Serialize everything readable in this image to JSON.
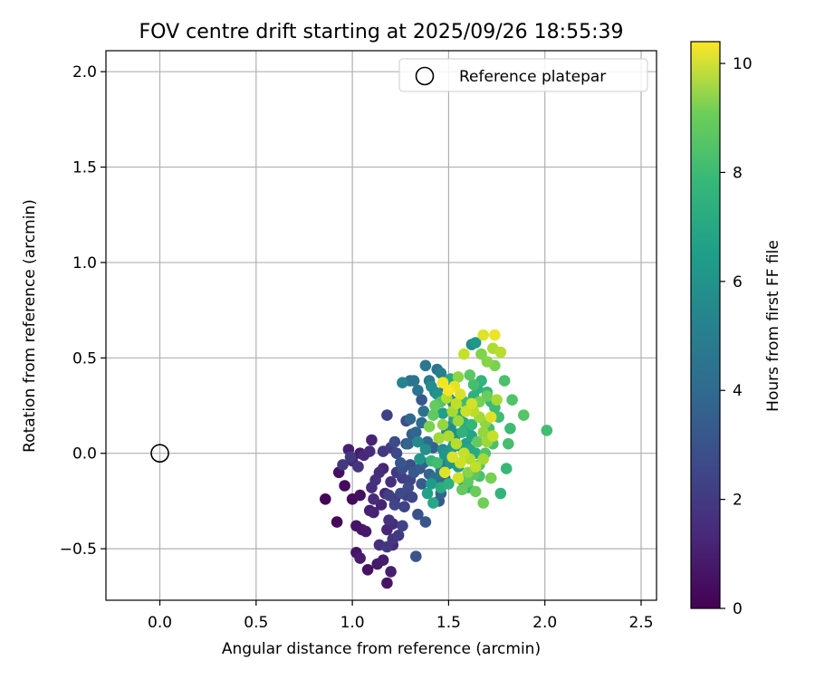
{
  "chart_data": {
    "type": "scatter",
    "title": "FOV centre drift starting at 2025/09/26 18:55:39",
    "xlabel": "Angular distance from reference (arcmin)",
    "ylabel": "Rotation from reference (arcmin)",
    "xlim": [
      -0.28,
      2.58
    ],
    "ylim": [
      -0.77,
      2.11
    ],
    "xticks": [
      0.0,
      0.5,
      1.0,
      1.5,
      2.0,
      2.5
    ],
    "xtick_labels": [
      "0.0",
      "0.5",
      "1.0",
      "1.5",
      "2.0",
      "2.5"
    ],
    "yticks": [
      -0.5,
      0.0,
      0.5,
      1.0,
      1.5,
      2.0
    ],
    "ytick_labels": [
      "−0.5",
      "0.0",
      "0.5",
      "1.0",
      "1.5",
      "2.0"
    ],
    "grid": true,
    "legend": {
      "placement": "upper right",
      "entries": [
        "Reference platepar"
      ]
    },
    "reference_point": {
      "x": 0.0,
      "y": 0.0,
      "label": "Reference platepar"
    },
    "colorbar": {
      "label": "Hours from first FF file",
      "colormap": "viridis",
      "range": [
        0,
        10.4
      ],
      "ticks": [
        0,
        2,
        4,
        6,
        8,
        10
      ],
      "tick_labels": [
        "0",
        "2",
        "4",
        "6",
        "8",
        "10"
      ]
    },
    "points": [
      [
        0.86,
        -0.24,
        0.1
      ],
      [
        0.92,
        -0.36,
        0.2
      ],
      [
        0.96,
        -0.17,
        0.3
      ],
      [
        0.93,
        -0.1,
        0.4
      ],
      [
        1.0,
        -0.24,
        0.3
      ],
      [
        1.02,
        -0.38,
        0.5
      ],
      [
        1.04,
        -0.22,
        0.4
      ],
      [
        1.05,
        -0.4,
        0.6
      ],
      [
        1.07,
        -0.41,
        0.7
      ],
      [
        1.08,
        -0.61,
        0.5
      ],
      [
        1.02,
        -0.52,
        0.6
      ],
      [
        1.04,
        -0.55,
        0.8
      ],
      [
        1.09,
        -0.3,
        0.9
      ],
      [
        1.11,
        -0.31,
        1.0
      ],
      [
        1.13,
        -0.58,
        0.7
      ],
      [
        1.16,
        -0.56,
        0.8
      ],
      [
        1.18,
        -0.68,
        0.6
      ],
      [
        1.2,
        -0.62,
        0.9
      ],
      [
        1.18,
        -0.4,
        1.1
      ],
      [
        1.21,
        -0.48,
        1.2
      ],
      [
        1.15,
        -0.27,
        1.0
      ],
      [
        1.17,
        -0.21,
        1.2
      ],
      [
        1.14,
        -0.1,
        1.3
      ],
      [
        1.16,
        -0.08,
        1.1
      ],
      [
        1.2,
        -0.15,
        1.4
      ],
      [
        1.19,
        -0.35,
        1.5
      ],
      [
        1.21,
        -0.37,
        1.3
      ],
      [
        1.22,
        -0.24,
        1.6
      ],
      [
        1.1,
        -0.18,
        1.4
      ],
      [
        1.12,
        -0.14,
        1.5
      ],
      [
        1.04,
        0.0,
        0.8
      ],
      [
        1.0,
        -0.04,
        1.1
      ],
      [
        0.98,
        0.02,
        0.9
      ],
      [
        1.06,
        -0.01,
        1.2
      ],
      [
        1.1,
        0.07,
        1.0
      ],
      [
        1.09,
        0.01,
        1.3
      ],
      [
        1.03,
        -0.07,
        1.6
      ],
      [
        0.95,
        -0.06,
        1.7
      ],
      [
        0.99,
        -0.02,
        1.8
      ],
      [
        1.16,
        0.01,
        1.7
      ],
      [
        1.2,
        0.03,
        1.9
      ],
      [
        1.23,
        -0.1,
        1.8
      ],
      [
        1.26,
        -0.13,
        2.0
      ],
      [
        1.28,
        -0.22,
        1.9
      ],
      [
        1.24,
        -0.43,
        1.8
      ],
      [
        1.26,
        -0.38,
        2.1
      ],
      [
        1.22,
        -0.27,
        2.2
      ],
      [
        1.19,
        -0.22,
        2.0
      ],
      [
        1.25,
        -0.21,
        2.3
      ],
      [
        1.31,
        -0.23,
        2.2
      ],
      [
        1.29,
        -0.18,
        2.4
      ],
      [
        1.3,
        -0.14,
        2.1
      ],
      [
        1.26,
        -0.08,
        2.5
      ],
      [
        1.23,
        0.0,
        2.3
      ],
      [
        1.18,
        0.2,
        2.0
      ],
      [
        1.22,
        0.06,
        2.4
      ],
      [
        1.28,
        0.05,
        2.6
      ],
      [
        1.3,
        -0.06,
        2.5
      ],
      [
        1.34,
        -0.32,
        2.6
      ],
      [
        1.38,
        -0.36,
        2.8
      ],
      [
        1.36,
        -0.16,
        2.9
      ],
      [
        1.35,
        -0.08,
        3.0
      ],
      [
        1.37,
        -0.05,
        3.2
      ],
      [
        1.4,
        -0.11,
        3.3
      ],
      [
        1.44,
        -0.15,
        3.1
      ],
      [
        1.46,
        -0.21,
        3.4
      ],
      [
        1.45,
        -0.25,
        3.0
      ],
      [
        1.48,
        -0.13,
        3.5
      ],
      [
        1.42,
        0.03,
        3.2
      ],
      [
        1.39,
        0.06,
        3.6
      ],
      [
        1.33,
        0.11,
        3.4
      ],
      [
        1.36,
        0.16,
        3.7
      ],
      [
        1.37,
        0.22,
        3.8
      ],
      [
        1.33,
        -0.54,
        2.7
      ],
      [
        1.3,
        0.38,
        3.9
      ],
      [
        1.34,
        0.33,
        4.0
      ],
      [
        1.32,
        0.38,
        4.1
      ],
      [
        1.28,
        0.17,
        2.4
      ],
      [
        1.3,
        0.18,
        3.5
      ],
      [
        1.38,
        0.46,
        4.2
      ],
      [
        1.4,
        0.38,
        4.3
      ],
      [
        1.43,
        0.32,
        4.4
      ],
      [
        1.46,
        0.42,
        4.5
      ],
      [
        1.48,
        0.35,
        4.6
      ],
      [
        1.5,
        0.29,
        4.7
      ],
      [
        1.52,
        0.27,
        4.8
      ],
      [
        1.49,
        0.11,
        4.9
      ],
      [
        1.51,
        0.14,
        5.0
      ],
      [
        1.54,
        0.1,
        5.1
      ],
      [
        1.47,
        0.02,
        5.2
      ],
      [
        1.45,
        0.08,
        5.3
      ],
      [
        1.48,
        -0.01,
        5.4
      ],
      [
        1.51,
        -0.05,
        5.5
      ],
      [
        1.55,
        -0.07,
        5.6
      ],
      [
        1.52,
        0.03,
        5.7
      ],
      [
        1.57,
        0.03,
        5.8
      ],
      [
        1.59,
        0.05,
        5.9
      ],
      [
        1.6,
        0.12,
        6.0
      ],
      [
        1.62,
        0.09,
        6.1
      ],
      [
        1.61,
        0.02,
        6.2
      ],
      [
        1.64,
        0.0,
        6.3
      ],
      [
        1.56,
        0.21,
        6.0
      ],
      [
        1.58,
        0.16,
        6.4
      ],
      [
        1.6,
        0.25,
        6.5
      ],
      [
        1.63,
        0.3,
        6.6
      ],
      [
        1.65,
        0.34,
        6.7
      ],
      [
        1.67,
        0.38,
        6.8
      ],
      [
        1.7,
        0.32,
        6.9
      ],
      [
        1.72,
        0.27,
        7.0
      ],
      [
        1.74,
        0.24,
        7.1
      ],
      [
        1.76,
        0.19,
        7.2
      ],
      [
        1.71,
        0.13,
        7.3
      ],
      [
        1.73,
        0.05,
        7.4
      ],
      [
        1.69,
        0.0,
        7.5
      ],
      [
        1.66,
        -0.06,
        7.6
      ],
      [
        1.63,
        -0.11,
        7.7
      ],
      [
        1.6,
        -0.15,
        7.8
      ],
      [
        1.57,
        -0.19,
        7.9
      ],
      [
        1.64,
        -0.2,
        8.0
      ],
      [
        1.68,
        -0.26,
        8.1
      ],
      [
        1.72,
        -0.13,
        8.2
      ],
      [
        1.77,
        -0.21,
        6.8
      ],
      [
        1.8,
        -0.08,
        7.0
      ],
      [
        1.81,
        0.05,
        7.3
      ],
      [
        1.82,
        0.13,
        7.1
      ],
      [
        1.83,
        0.28,
        7.5
      ],
      [
        1.79,
        0.38,
        7.4
      ],
      [
        1.74,
        0.46,
        8.3
      ],
      [
        1.67,
        0.52,
        8.4
      ],
      [
        1.62,
        0.57,
        5.0
      ],
      [
        1.64,
        0.58,
        5.5
      ],
      [
        1.7,
        0.48,
        8.5
      ],
      [
        1.73,
        0.55,
        9.1
      ],
      [
        1.77,
        0.53,
        9.3
      ],
      [
        1.89,
        0.2,
        7.6
      ],
      [
        2.01,
        0.12,
        7.2
      ],
      [
        1.61,
        0.41,
        7.7
      ],
      [
        1.55,
        0.4,
        8.6
      ],
      [
        1.58,
        0.52,
        9.5
      ],
      [
        1.68,
        0.62,
        9.9
      ],
      [
        1.74,
        0.62,
        10.1
      ],
      [
        1.47,
        0.37,
        10.2
      ],
      [
        1.5,
        0.33,
        10.3
      ],
      [
        1.53,
        0.35,
        10.0
      ],
      [
        1.56,
        0.31,
        9.8
      ],
      [
        1.59,
        0.22,
        9.6
      ],
      [
        1.62,
        0.26,
        9.7
      ],
      [
        1.54,
        0.26,
        9.4
      ],
      [
        1.49,
        0.29,
        9.2
      ],
      [
        1.52,
        0.22,
        9.0
      ],
      [
        1.55,
        0.17,
        8.8
      ],
      [
        1.47,
        0.15,
        8.7
      ],
      [
        1.45,
        0.08,
        8.9
      ],
      [
        1.5,
        0.09,
        9.1
      ],
      [
        1.54,
        0.05,
        9.3
      ],
      [
        1.58,
        0.0,
        9.5
      ],
      [
        1.61,
        -0.03,
        9.2
      ],
      [
        1.56,
        -0.05,
        9.6
      ],
      [
        1.52,
        -0.02,
        9.8
      ],
      [
        1.48,
        -0.1,
        9.9
      ],
      [
        1.55,
        -0.13,
        9.7
      ],
      [
        1.6,
        -0.1,
        8.5
      ],
      [
        1.64,
        -0.07,
        9.4
      ],
      [
        1.68,
        -0.03,
        9.0
      ],
      [
        1.7,
        0.06,
        8.8
      ],
      [
        1.73,
        0.09,
        9.5
      ],
      [
        1.69,
        0.16,
        8.6
      ],
      [
        1.66,
        0.19,
        8.9
      ],
      [
        1.63,
        0.22,
        9.3
      ],
      [
        1.66,
        0.27,
        8.2
      ],
      [
        1.7,
        0.3,
        8.0
      ],
      [
        1.75,
        0.28,
        9.0
      ],
      [
        1.42,
        0.2,
        7.8
      ],
      [
        1.4,
        0.14,
        8.3
      ],
      [
        1.43,
        0.25,
        7.9
      ],
      [
        1.46,
        0.27,
        7.5
      ],
      [
        1.44,
        -0.05,
        7.2
      ],
      [
        1.41,
        -0.04,
        6.9
      ],
      [
        1.46,
        -0.18,
        6.4
      ],
      [
        1.5,
        -0.16,
        6.6
      ],
      [
        1.42,
        -0.26,
        6.2
      ],
      [
        1.39,
        -0.21,
        5.9
      ],
      [
        1.41,
        -0.16,
        5.7
      ],
      [
        1.35,
        -0.03,
        5.5
      ],
      [
        1.38,
        0.02,
        5.2
      ],
      [
        1.34,
        0.06,
        4.9
      ],
      [
        1.47,
        0.21,
        5.8
      ],
      [
        1.53,
        0.18,
        6.1
      ],
      [
        1.57,
        0.11,
        6.7
      ],
      [
        1.62,
        0.15,
        6.9
      ],
      [
        1.58,
        0.27,
        7.1
      ],
      [
        1.63,
        0.36,
        7.3
      ],
      [
        1.51,
        0.39,
        6.3
      ],
      [
        1.44,
        0.31,
        5.3
      ],
      [
        1.41,
        0.35,
        5.1
      ],
      [
        1.26,
        0.37,
        4.7
      ],
      [
        1.44,
        0.44,
        4.0
      ],
      [
        1.53,
        0.07,
        4.6
      ],
      [
        1.49,
        -0.06,
        4.3
      ],
      [
        1.46,
        -0.09,
        4.1
      ],
      [
        1.43,
        -0.13,
        3.9
      ],
      [
        1.57,
        -0.14,
        5.4
      ],
      [
        1.6,
        -0.18,
        6.8
      ],
      [
        1.66,
        -0.12,
        7.4
      ],
      [
        1.65,
        0.06,
        7.9
      ],
      [
        1.68,
        0.11,
        8.7
      ],
      [
        1.72,
        0.19,
        9.9
      ],
      [
        1.36,
        0.28,
        2.9
      ],
      [
        1.31,
        0.1,
        3.1
      ],
      [
        1.29,
        0.05,
        3.4
      ],
      [
        1.25,
        -0.05,
        2.8
      ],
      [
        1.32,
        -0.1,
        2.9
      ],
      [
        1.27,
        -0.28,
        2.1
      ],
      [
        1.18,
        -0.49,
        1.7
      ],
      [
        1.14,
        -0.48,
        1.4
      ],
      [
        1.21,
        -0.45,
        1.6
      ],
      [
        1.11,
        -0.24,
        1.3
      ]
    ]
  }
}
